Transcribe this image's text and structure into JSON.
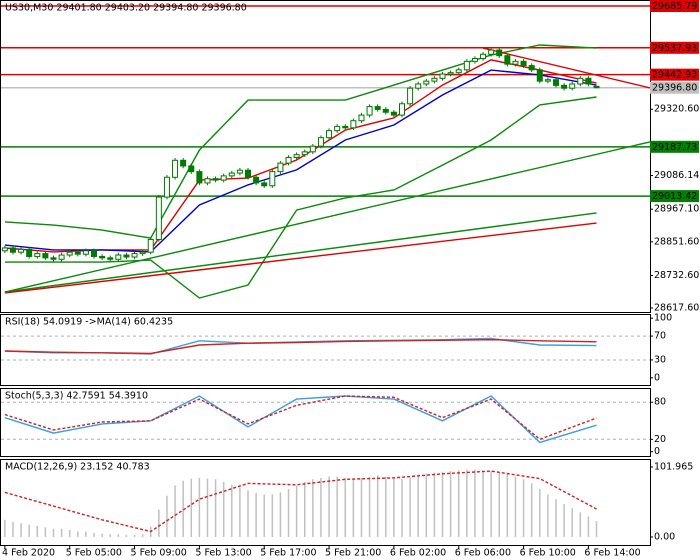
{
  "chart_data": [
    {
      "type": "candlestick",
      "title": "US30,M30  29401.80 29403.20 29394.80 29396.80",
      "xlim": [
        -0.6,
        79.6
      ],
      "ylim": [
        28603.5,
        29707.0
      ],
      "yticks": [
        {
          "value": 28617.6,
          "label": "28617.60"
        },
        {
          "value": 28732.6,
          "label": "28732.60"
        },
        {
          "value": 28851.6,
          "label": "28851.60"
        },
        {
          "value": 28967.1,
          "label": "28967.10"
        },
        {
          "value": 29086.14,
          "label": "29086.14"
        },
        {
          "value": 29320.6,
          "label": "29320.60"
        }
      ],
      "categories": [
        "4 Feb 2020",
        null,
        null,
        null,
        null,
        null,
        null,
        null,
        "5 Feb 05:00",
        null,
        null,
        null,
        null,
        null,
        null,
        null,
        "5 Feb 09:00",
        null,
        null,
        null,
        null,
        null,
        null,
        null,
        "5 Feb 13:00",
        null,
        null,
        null,
        null,
        null,
        null,
        null,
        "5 Feb 17:00",
        null,
        null,
        null,
        null,
        null,
        null,
        null,
        "5 Feb 21:00",
        null,
        null,
        null,
        null,
        null,
        null,
        null,
        "6 Feb 02:00",
        null,
        null,
        null,
        null,
        null,
        null,
        null,
        "6 Feb 06:00",
        null,
        null,
        null,
        null,
        null,
        null,
        null,
        "6 Feb 10:00",
        null,
        null,
        null,
        null,
        null,
        null,
        null,
        "6 Feb 14:00",
        null
      ],
      "open": [
        28820,
        28830,
        28815,
        28825,
        28800,
        28810,
        28795,
        28790,
        28805,
        28815,
        28808,
        28820,
        28800,
        28795,
        28790,
        28805,
        28798,
        28810,
        28815,
        28860,
        29010,
        29080,
        29140,
        29120,
        29100,
        29060,
        29075,
        29070,
        29085,
        29095,
        29105,
        29080,
        29060,
        29050,
        29100,
        29130,
        29150,
        29160,
        29170,
        29190,
        29220,
        29245,
        29260,
        29255,
        29280,
        29300,
        29330,
        29320,
        29310,
        29300,
        29340,
        29395,
        29410,
        29420,
        29430,
        29445,
        29450,
        29460,
        29490,
        29500,
        29515,
        29530,
        29510,
        29480,
        29490,
        29475,
        29460,
        29420,
        29425,
        29405,
        29395,
        29410,
        29430,
        29401.8
      ],
      "high": [
        28838,
        28838,
        28833,
        28833,
        28818,
        28818,
        28803,
        28813,
        28823,
        28823,
        28828,
        28828,
        28808,
        28803,
        28813,
        28813,
        28818,
        28823,
        28868,
        29018,
        29088,
        29148,
        29148,
        29128,
        29108,
        29083,
        29083,
        29093,
        29103,
        29113,
        29113,
        29088,
        29068,
        29108,
        29138,
        29158,
        29168,
        29178,
        29198,
        29228,
        29253,
        29268,
        29268,
        29288,
        29308,
        29338,
        29338,
        29328,
        29318,
        29348,
        29403,
        29418,
        29428,
        29438,
        29453,
        29458,
        29468,
        29498,
        29508,
        29523,
        29538,
        29538,
        29518,
        29498,
        29498,
        29483,
        29468,
        29433,
        29433,
        29413,
        29418,
        29438,
        29438,
        29403.2
      ],
      "low": [
        28812,
        28807,
        28807,
        28792,
        28792,
        28787,
        28782,
        28782,
        28797,
        28800,
        28800,
        28792,
        28787,
        28782,
        28782,
        28790,
        28790,
        28802,
        28807,
        28852,
        29002,
        29072,
        29112,
        29092,
        29052,
        29052,
        29062,
        29062,
        29077,
        29087,
        29072,
        29052,
        29042,
        29042,
        29092,
        29122,
        29142,
        29152,
        29162,
        29182,
        29212,
        29237,
        29247,
        29247,
        29272,
        29292,
        29312,
        29302,
        29292,
        29292,
        29332,
        29387,
        29402,
        29412,
        29422,
        29437,
        29442,
        29452,
        29482,
        29492,
        29507,
        29502,
        29472,
        29472,
        29467,
        29452,
        29412,
        29412,
        29397,
        29387,
        29387,
        29402,
        29402,
        29394.8
      ],
      "close": [
        28830,
        28815,
        28825,
        28800,
        28810,
        28795,
        28790,
        28805,
        28815,
        28808,
        28820,
        28800,
        28795,
        28790,
        28805,
        28798,
        28810,
        28815,
        28860,
        29010,
        29080,
        29140,
        29120,
        29100,
        29060,
        29075,
        29070,
        29085,
        29095,
        29105,
        29080,
        29060,
        29050,
        29100,
        29130,
        29150,
        29160,
        29170,
        29190,
        29220,
        29245,
        29260,
        29255,
        29280,
        29300,
        29330,
        29320,
        29310,
        29300,
        29340,
        29395,
        29410,
        29420,
        29430,
        29445,
        29450,
        29460,
        29490,
        29500,
        29515,
        29530,
        29510,
        29480,
        29490,
        29475,
        29460,
        29420,
        29425,
        29405,
        29395,
        29410,
        29430,
        29410,
        29396.8
      ],
      "candle_color": "#007a00",
      "up_color": "#ffffff",
      "down_color": "#007a00",
      "levels": [
        {
          "value": 29685.79,
          "color": "#e00000",
          "text_color": "#ffffff"
        },
        {
          "value": 29537.93,
          "color": "#e00000",
          "text_color": "#ffffff"
        },
        {
          "value": 29442.93,
          "color": "#e00000",
          "text_color": "#ffffff"
        },
        {
          "value": 29396.8,
          "label": "29396.80",
          "color": "#c0c0c0",
          "text_color": "#000000"
        },
        {
          "value": 29187.73,
          "color": "#008000",
          "text_color": "#ffffff"
        },
        {
          "value": 29013.42,
          "color": "#008000",
          "text_color": "#ffffff"
        }
      ],
      "lines": [
        {
          "color": "#0a8a0a",
          "x": [
            0,
            6,
            12,
            18,
            24,
            30,
            36,
            42,
            48,
            54,
            60,
            66,
            73
          ],
          "values": [
            28922,
            28911,
            28893,
            28865,
            29176,
            29353,
            29353,
            29353,
            29406,
            29459,
            29512,
            29548,
            29537
          ]
        },
        {
          "color": "#0a8a0a",
          "x": [
            0,
            6,
            12,
            18,
            24,
            30,
            36,
            42,
            48,
            54,
            60,
            66,
            73
          ],
          "values": [
            28780,
            28780,
            28780,
            28787,
            28653,
            28699,
            28964,
            29007,
            29035,
            29123,
            29212,
            29336,
            29364
          ]
        },
        {
          "color": "#e00000",
          "x": [
            0,
            6,
            12,
            18,
            24,
            30,
            36,
            42,
            48,
            54,
            60,
            66,
            73
          ],
          "values": [
            28830,
            28816,
            28823,
            28823,
            29070,
            29077,
            29141,
            29247,
            29290,
            29406,
            29495,
            29459,
            29413
          ]
        },
        {
          "color": "#0000d0",
          "x": [
            0,
            6,
            12,
            18,
            24,
            30,
            36,
            42,
            48,
            54,
            60,
            66,
            73
          ],
          "values": [
            28840,
            28823,
            28823,
            28816,
            28982,
            29053,
            29106,
            29212,
            29265,
            29371,
            29459,
            29442,
            29406
          ]
        },
        {
          "color": "#0a8a0a",
          "x": [
            0,
            73
          ],
          "values": [
            28674,
            28954
          ]
        },
        {
          "color": "#e00000",
          "x": [
            0,
            73
          ],
          "values": [
            28671,
            28918
          ]
        },
        {
          "color": "#0a8a0a",
          "x": [
            0,
            79.6
          ],
          "values": [
            28674,
            29205
          ]
        },
        {
          "color": "#e00000",
          "x": [
            59,
            79.6
          ],
          "values": [
            29537,
            29396
          ]
        }
      ]
    },
    {
      "type": "line",
      "title": "RSI(18) 54.0919  ->MA(14) 60.4235",
      "xlim": [
        -0.6,
        79.6
      ],
      "ylim": [
        -12,
        107
      ],
      "yticks": [
        0,
        30,
        70,
        100
      ],
      "levels": [
        30,
        70
      ],
      "lines": [
        {
          "color": "#3aa0e0",
          "x": [
            0,
            6,
            12,
            18,
            24,
            30,
            36,
            42,
            48,
            54,
            60,
            66,
            73
          ],
          "values": [
            45,
            42,
            42,
            40,
            62,
            58,
            60,
            62,
            63,
            64,
            66,
            55,
            54.0919
          ]
        },
        {
          "color": "#d02020",
          "x": [
            0,
            6,
            12,
            18,
            24,
            30,
            36,
            42,
            48,
            54,
            60,
            66,
            73
          ],
          "values": [
            45,
            43,
            42,
            41,
            55,
            58,
            59,
            61,
            62,
            63,
            64,
            62,
            60.4235
          ]
        }
      ]
    },
    {
      "type": "line",
      "title": "Stoch(5,3,3) 42.7591 54.3910",
      "xlim": [
        -0.6,
        79.6
      ],
      "ylim": [
        -7,
        103
      ],
      "yticks": [
        0,
        20,
        80
      ],
      "levels": [
        20,
        80
      ],
      "lines": [
        {
          "color": "#3aa0e0",
          "x": [
            0,
            6,
            12,
            18,
            24,
            30,
            36,
            42,
            48,
            54,
            60,
            66,
            73
          ],
          "values": [
            55,
            30,
            45,
            50,
            90,
            40,
            85,
            90,
            85,
            50,
            90,
            15,
            42.7591
          ]
        },
        {
          "color": "#d02020",
          "style": "dashed",
          "x": [
            0,
            6,
            12,
            18,
            24,
            30,
            36,
            42,
            48,
            54,
            60,
            66,
            73
          ],
          "values": [
            60,
            35,
            48,
            50,
            85,
            45,
            75,
            90,
            88,
            55,
            85,
            20,
            54.391
          ]
        }
      ]
    },
    {
      "type": "histogram",
      "title": "MACD(12,26,9) 23.152 40.783",
      "xlim": [
        -0.6,
        79.6
      ],
      "ylim": [
        -11.7,
        113.6
      ],
      "yticks": [
        {
          "value": 101.965,
          "label": "101.965"
        },
        {
          "value": 0,
          "label": "0.00"
        }
      ],
      "histogram": {
        "color": "#c0c0c0",
        "values": [
          25,
          22,
          20,
          18,
          16,
          14,
          12,
          12,
          10,
          8,
          8,
          6,
          5,
          4,
          4,
          3,
          3,
          4,
          15,
          40,
          60,
          75,
          82,
          85,
          86,
          85,
          84,
          80,
          76,
          72,
          68,
          64,
          62,
          62,
          65,
          70,
          75,
          80,
          84,
          86,
          88,
          88,
          86,
          85,
          86,
          88,
          90,
          88,
          85,
          84,
          86,
          90,
          92,
          94,
          95,
          96,
          97,
          98,
          98,
          97,
          96,
          95,
          92,
          88,
          84,
          78,
          70,
          62,
          55,
          48,
          42,
          36,
          30,
          23.152
        ]
      },
      "lines": [
        {
          "color": "#d02020",
          "style": "dashed",
          "x": [
            0,
            6,
            12,
            18,
            24,
            30,
            36,
            42,
            48,
            54,
            60,
            66,
            73
          ],
          "values": [
            65,
            45,
            25,
            8,
            55,
            78,
            76,
            84,
            86,
            92,
            96,
            85,
            40.783
          ]
        }
      ]
    }
  ]
}
